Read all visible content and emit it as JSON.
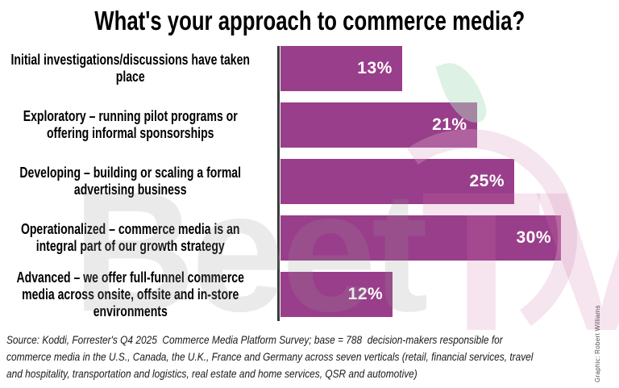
{
  "chart_data": {
    "type": "bar",
    "orientation": "horizontal",
    "title": "What's your approach to commerce media?",
    "categories": [
      "Initial investigations/discussions have taken\nplace",
      "Exploratory – running pilot programs or\noffering informal sponsorships",
      "Developing – building or scaling a formal\nadvertising business",
      "Operationalized – commerce media is an\nintegral part of our growth strategy",
      "Advanced – we offer full-funnel commerce\nmedia across onsite, offsite and in-store\nenvironments"
    ],
    "values": [
      13,
      21,
      25,
      30,
      12
    ],
    "value_labels": [
      "13%",
      "21%",
      "25%",
      "30%",
      "12%"
    ],
    "xlabel": "",
    "ylabel": "",
    "xlim": [
      0,
      36
    ],
    "grid": false,
    "legend": "none",
    "bar_color": "#993E8A",
    "value_label_color": "#FFFFFF",
    "axis_color": "#3A3A3A"
  },
  "source_note": {
    "text": "Source: Koddi, Forrester's Q4 2025  Commerce Media Platform Survey; base = 788  decision-makers responsible for\ncommerce media in the U.S., Canada, the U.K., France and Germany across seven verticals (retail, financial services, travel\nand hospitality, transportation and logistics, real estate and home services, QSR and automotive)"
  },
  "credit": {
    "text": "Graphic: Robert Williams"
  },
  "watermark": {
    "gray_text": "Beet",
    "pink_text": "TV",
    "gray_color": "#E9E9E9",
    "pink_color": "#F4DFEC",
    "leaf_color": "#E7F4EC",
    "ring_color": "#F2DCE9"
  }
}
